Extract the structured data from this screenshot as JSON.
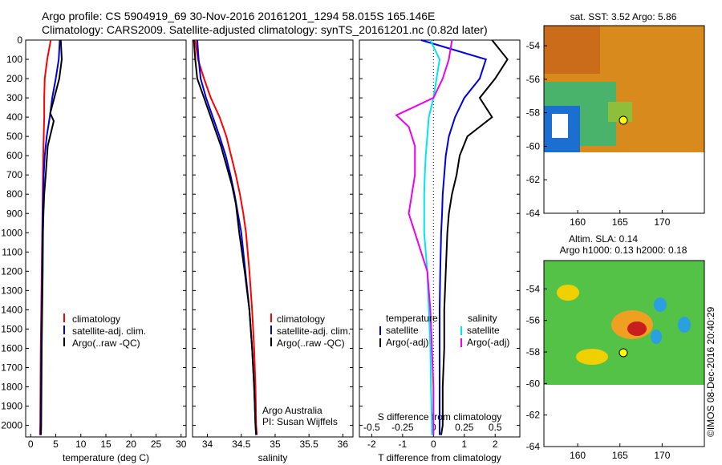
{
  "header": {
    "line1": "Argo profile: CS 5904919_69 30-Nov-2016 20161201_1294 58.015S 165.146E",
    "line2": "Climatology: CARS2009. Satellite-adjusted climatology: synTS_20161201.nc (0.82d later)"
  },
  "credit": "©IMOS 08-Dec-2016 20:40:29",
  "colors": {
    "climatology": "#ff0000",
    "satellite": "#0000dd",
    "argo": "#000000",
    "cyan": "#00e5ee",
    "magenta": "#ee00ee"
  },
  "chart_data": [
    {
      "id": "temperature",
      "type": "line",
      "xlabel": "temperature (deg C)",
      "ylabel": "",
      "xlim": [
        -1,
        31
      ],
      "ylim": [
        2060,
        0
      ],
      "xticks": [
        0,
        5,
        10,
        15,
        20,
        25,
        30
      ],
      "yticks": [
        0,
        100,
        200,
        300,
        400,
        500,
        600,
        700,
        800,
        900,
        1000,
        1100,
        1200,
        1300,
        1400,
        1500,
        1600,
        1700,
        1800,
        1900,
        2000
      ],
      "legend": [
        "climatology",
        "satellite-adj. clim.",
        "Argo(..raw -QC)"
      ],
      "series": [
        {
          "name": "climatology",
          "color": "#ff0000",
          "x": [
            4.0,
            3.3,
            2.8,
            2.7,
            2.7,
            2.6,
            2.5,
            2.45,
            2.4,
            2.35,
            2.3,
            2.2,
            2.1,
            2.0,
            1.95,
            1.9,
            1.85
          ],
          "y": [
            0,
            100,
            200,
            300,
            400,
            500,
            600,
            700,
            800,
            900,
            1000,
            1200,
            1400,
            1600,
            1800,
            2000,
            2050
          ]
        },
        {
          "name": "satellite-adj. clim.",
          "color": "#0000dd",
          "x": [
            5.8,
            5.6,
            5.0,
            4.3,
            3.8,
            3.2,
            2.8,
            2.6,
            2.5,
            2.4,
            2.35,
            2.3,
            2.2,
            2.1,
            2.05,
            2.0,
            1.95
          ],
          "y": [
            0,
            100,
            200,
            300,
            400,
            500,
            600,
            700,
            800,
            900,
            1000,
            1200,
            1400,
            1600,
            1800,
            2000,
            2050
          ]
        },
        {
          "name": "Argo(..raw -QC)",
          "color": "#000000",
          "x": [
            6.0,
            6.2,
            5.7,
            4.7,
            3.9,
            4.6,
            3.4,
            3.0,
            2.7,
            2.55,
            2.45,
            2.4,
            2.3,
            2.2,
            2.15,
            2.1,
            2.05
          ],
          "y": [
            0,
            100,
            200,
            300,
            380,
            420,
            550,
            700,
            800,
            900,
            1000,
            1200,
            1400,
            1600,
            1800,
            2000,
            2050
          ]
        }
      ]
    },
    {
      "id": "salinity",
      "type": "line",
      "xlabel": "salinity",
      "ylabel": "",
      "xlim": [
        33.78,
        36.15
      ],
      "ylim": [
        2060,
        0
      ],
      "xticks": [
        34,
        34.5,
        35,
        35.5,
        36
      ],
      "legend": [
        "climatology",
        "satellite-adj. clim.",
        "Argo(..raw -QC)"
      ],
      "series": [
        {
          "name": "climatology",
          "color": "#ff0000",
          "x": [
            33.82,
            33.86,
            33.95,
            34.05,
            34.18,
            34.28,
            34.35,
            34.42,
            34.48,
            34.53,
            34.57,
            34.62,
            34.66,
            34.69,
            34.71,
            34.72,
            34.73
          ],
          "y": [
            0,
            100,
            200,
            300,
            400,
            500,
            600,
            700,
            800,
            900,
            1000,
            1200,
            1400,
            1600,
            1800,
            2000,
            2050
          ]
        },
        {
          "name": "satellite-adj. clim.",
          "color": "#0000dd",
          "x": [
            33.85,
            33.87,
            33.9,
            33.98,
            34.08,
            34.18,
            34.27,
            34.34,
            34.4,
            34.45,
            34.5,
            34.56,
            34.62,
            34.66,
            34.69,
            34.71,
            34.72
          ],
          "y": [
            0,
            100,
            200,
            300,
            400,
            500,
            600,
            700,
            800,
            900,
            1000,
            1200,
            1400,
            1600,
            1800,
            2000,
            2050
          ]
        },
        {
          "name": "Argo(..raw -QC)",
          "color": "#000000",
          "x": [
            33.8,
            33.82,
            33.85,
            33.95,
            34.05,
            34.1,
            34.2,
            34.28,
            34.36,
            34.42,
            34.47,
            34.55,
            34.62,
            34.66,
            34.69,
            34.71,
            34.72
          ],
          "y": [
            0,
            100,
            200,
            300,
            400,
            450,
            550,
            650,
            750,
            850,
            1000,
            1200,
            1400,
            1600,
            1800,
            2000,
            2050
          ]
        }
      ],
      "annotation": [
        "Argo Australia",
        "PI: Susan Wijffels"
      ]
    },
    {
      "id": "difference",
      "type": "line",
      "xlabel": "T difference from climatology",
      "xlabel_top": "S difference from climatology",
      "xlim_T": [
        -2.4,
        2.8
      ],
      "xticks_T": [
        -2,
        -1,
        0,
        1,
        2
      ],
      "xticks_S": [
        -0.5,
        -0.25,
        0,
        0.25,
        0.5
      ],
      "xticklabels_S": [
        "-0.5",
        "-0.25",
        "0",
        "0.25",
        "0.5"
      ],
      "ylim": [
        2060,
        0
      ],
      "legend_T_title": "temperature",
      "legend_S_title": "salinity",
      "legend": [
        "satellite",
        "Argo(-adj)",
        "satellite",
        "Argo(-adj)"
      ],
      "series": [
        {
          "name": "satellite",
          "color": "#0000dd",
          "x": [
            -0.4,
            1.7,
            1.5,
            1.0,
            0.7,
            0.5,
            0.4,
            0.35,
            0.3,
            0.28,
            0.25,
            0.22,
            0.2,
            0.2,
            0.2,
            0.2,
            0.2
          ],
          "y": [
            0,
            100,
            200,
            300,
            400,
            500,
            600,
            700,
            800,
            900,
            1000,
            1200,
            1400,
            1600,
            1800,
            2000,
            2050
          ]
        },
        {
          "name": "Argo(-adj)",
          "color": "#000000",
          "x": [
            1.9,
            2.4,
            2.0,
            1.5,
            1.9,
            1.1,
            0.85,
            0.75,
            0.6,
            0.5,
            0.45,
            0.4,
            0.35,
            0.35,
            0.3,
            0.3,
            0.25
          ],
          "y": [
            0,
            100,
            200,
            300,
            400,
            500,
            600,
            700,
            800,
            900,
            1000,
            1200,
            1400,
            1600,
            1800,
            2000,
            2050
          ]
        },
        {
          "name": "satellite",
          "color": "#00e5ee",
          "x": [
            -0.1,
            0.2,
            0.1,
            0.0,
            -0.15,
            -0.2,
            -0.25,
            -0.28,
            -0.3,
            -0.3,
            -0.3,
            -0.2,
            -0.15,
            -0.1,
            -0.08,
            -0.05,
            -0.05
          ],
          "y": [
            0,
            100,
            200,
            300,
            400,
            500,
            600,
            700,
            800,
            900,
            1000,
            1200,
            1400,
            1600,
            1800,
            2000,
            2050
          ]
        },
        {
          "name": "Argo(-adj)",
          "color": "#ee00ee",
          "x": [
            0.6,
            0.5,
            0.3,
            0.0,
            -1.2,
            -0.8,
            -0.6,
            -0.6,
            -0.7,
            -0.8,
            -0.6,
            -0.2,
            -0.1,
            -0.05,
            0.0,
            0.0,
            0.0
          ],
          "y": [
            0,
            100,
            200,
            300,
            390,
            450,
            550,
            700,
            800,
            900,
            1000,
            1200,
            1400,
            1600,
            1800,
            2000,
            2050
          ]
        }
      ]
    }
  ],
  "maps": [
    {
      "id": "sst",
      "title": "sat. SST: 3.52 Argo: 5.86",
      "xticks": [
        160,
        165,
        170
      ],
      "yticks": [
        -54,
        -56,
        -58,
        -60,
        -62,
        -64
      ]
    },
    {
      "id": "sla",
      "title1": "Altim. SLA: 0.14",
      "title2": "Argo h1000: 0.13 h2000: 0.18",
      "xticks": [
        160,
        165,
        170
      ],
      "yticks": [
        -54,
        -56,
        -58,
        -60,
        -62,
        -64
      ]
    }
  ]
}
